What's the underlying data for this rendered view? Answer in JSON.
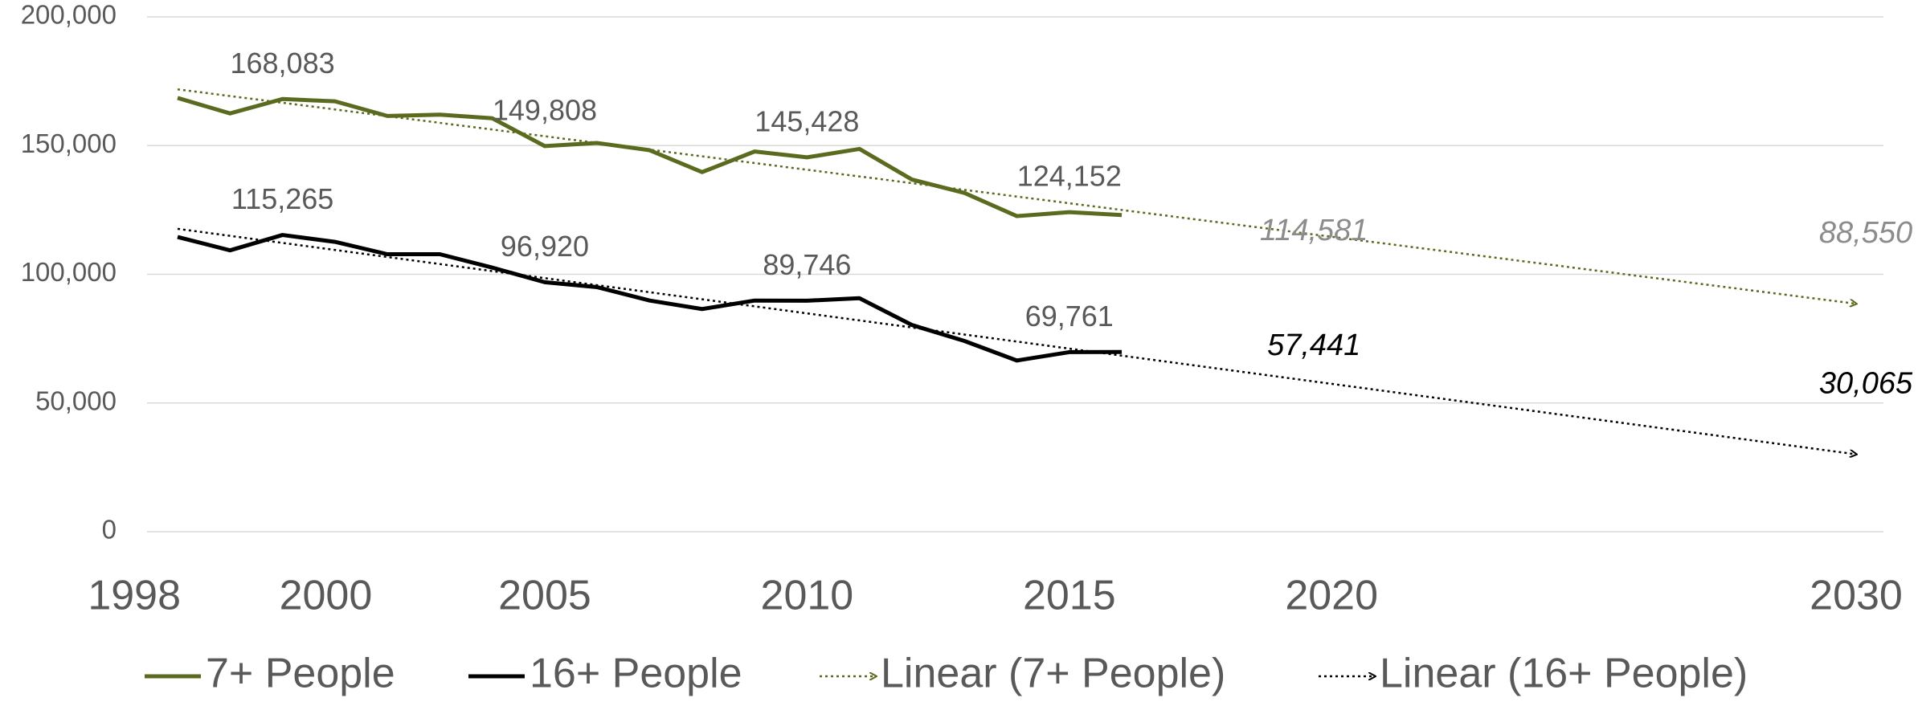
{
  "chart_data": {
    "type": "line",
    "xlim": [
      1998,
      2030
    ],
    "xticks": [
      1998,
      2000,
      2005,
      2010,
      2015,
      2020,
      2030
    ],
    "ylim": [
      0,
      200000
    ],
    "yticks": [
      0,
      {
        "value": 50000,
        "label": "50,000"
      },
      {
        "value": 100000,
        "label": "100,000"
      },
      {
        "value": 150000,
        "label": "150,000"
      },
      {
        "value": 200000,
        "label": "200,000"
      }
    ],
    "grid": true,
    "legend": "bottom",
    "series": [
      {
        "name": "7+ People",
        "color": "#5a6b1f",
        "style": "solid",
        "x": [
          1998,
          1999,
          2000,
          2001,
          2002,
          2003,
          2004,
          2005,
          2006,
          2007,
          2008,
          2009,
          2010,
          2011,
          2012,
          2013,
          2014,
          2015,
          2016
        ],
        "values": [
          168500,
          162500,
          168083,
          167200,
          161500,
          162000,
          160600,
          149808,
          151000,
          148200,
          139700,
          147700,
          145428,
          148700,
          136800,
          131600,
          122600,
          124152,
          123000
        ],
        "value_labels": [
          null,
          null,
          "168,083",
          null,
          null,
          null,
          null,
          "149,808",
          null,
          null,
          null,
          null,
          "145,428",
          null,
          null,
          null,
          null,
          "124,152",
          null
        ]
      },
      {
        "name": "16+ People",
        "color": "#000000",
        "style": "solid",
        "x": [
          1998,
          1999,
          2000,
          2001,
          2002,
          2003,
          2004,
          2005,
          2006,
          2007,
          2008,
          2009,
          2010,
          2011,
          2012,
          2013,
          2014,
          2015,
          2016
        ],
        "values": [
          114500,
          109300,
          115265,
          112600,
          107800,
          107800,
          102600,
          96920,
          95000,
          89800,
          86500,
          89800,
          89746,
          90700,
          80300,
          74100,
          66500,
          69761,
          69800
        ],
        "value_labels": [
          null,
          null,
          "115,265",
          null,
          null,
          null,
          null,
          "96,920",
          null,
          null,
          null,
          null,
          "89,746",
          null,
          null,
          null,
          null,
          "69,761",
          null
        ]
      },
      {
        "name": "Linear (7+ People)",
        "color": "#5a6b1f",
        "label_color": "#8c8c8c",
        "style": "dotted",
        "x": [
          1998,
          2020,
          2030
        ],
        "values": [
          171847,
          114581,
          88550
        ],
        "value_labels": [
          null,
          "114,581",
          "88,550"
        ]
      },
      {
        "name": "Linear (16+ People)",
        "color": "#000000",
        "label_color": "#000000",
        "style": "dotted",
        "x": [
          1998,
          2020,
          2030
        ],
        "values": [
          117668,
          57441,
          30065
        ],
        "value_labels": [
          null,
          "57,441",
          "30,065"
        ]
      }
    ]
  }
}
